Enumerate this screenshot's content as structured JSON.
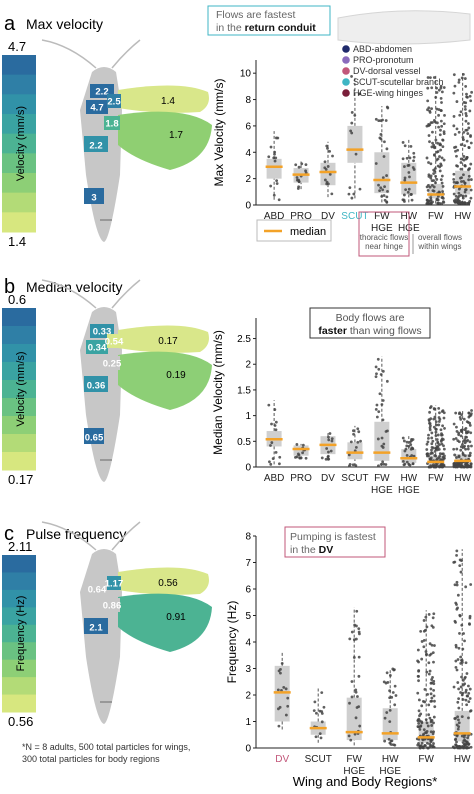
{
  "panels": [
    {
      "letter": "a",
      "title": "Max velocity",
      "scale": {
        "max_label": "4.7",
        "min_label": "1.4",
        "axis_label": "Velocity (mm/s)"
      },
      "insect_labels": {
        "pro": "2.2",
        "abd1": "4.7",
        "hinge": "2.5",
        "scut": "1.8",
        "mid": "2.2",
        "dv": "3",
        "forewing": "1.4",
        "hindwing": "1.7"
      },
      "callout": {
        "line1": "Flows are fastest",
        "line2_plain": "in the ",
        "line2_bold": "return conduit"
      },
      "legend": [
        {
          "label": "ABD-abdomen",
          "color": "#1f2a6b"
        },
        {
          "label": "PRO-pronotum",
          "color": "#8a6bbd"
        },
        {
          "label": "DV-dorsal vessel",
          "color": "#c2577a"
        },
        {
          "label": "SCUT-scutellar branch",
          "color": "#3fb6c4"
        },
        {
          "label": "HGE-wing hinges",
          "color": "#7a1f3a"
        }
      ],
      "median_legend": "median",
      "note_thoracic": [
        "thoracic flows",
        "near hinge"
      ],
      "note_overall": [
        "overall flows",
        "within wings"
      ]
    },
    {
      "letter": "b",
      "title": "Median velocity",
      "scale": {
        "max_label": "0.6",
        "min_label": "0.17",
        "axis_label": "Velocity (mm/s)"
      },
      "insect_labels": {
        "pro": "0.33",
        "abd1": "0.34",
        "hinge": "0.54",
        "scut": "0.25",
        "mid": "0.36",
        "dv": "0.65",
        "forewing": "0.17",
        "hindwing": "0.19"
      },
      "callout": {
        "line1": "Body flows are",
        "line2_plain": " than wing flows",
        "line2_bold": "faster"
      }
    },
    {
      "letter": "c",
      "title": "Pulse frequency",
      "scale": {
        "max_label": "2.11",
        "min_label": "0.56",
        "axis_label": "Frequency (Hz)"
      },
      "insect_labels": {
        "abd1": "0.64",
        "hinge": "1.17",
        "scut": "0.86",
        "mid": "2.1",
        "forewing": "0.56",
        "hindwing": "0.91"
      },
      "callout": {
        "line1": "Pumping is fastest",
        "line2_plain": "in the ",
        "line2_bold": "DV"
      },
      "footnote": [
        "*N = 8 adults, 500 total particles for wings,",
        "300 total particles for body regions"
      ]
    }
  ],
  "x_title": "Wing and Body Regions*",
  "chart_data": [
    {
      "type": "box",
      "ylabel": "Max Velocity (mm/s)",
      "ylim": [
        0,
        11
      ],
      "yticks": [
        0,
        2,
        4,
        6,
        8,
        10
      ],
      "categories": [
        "ABD",
        "PRO",
        "DV",
        "SCUT",
        "FW\nHGE",
        "HW\nHGE",
        "FW",
        "HW"
      ],
      "median": [
        2.9,
        2.3,
        2.5,
        4.2,
        1.9,
        1.7,
        0.8,
        1.4
      ],
      "q1": [
        2.0,
        1.7,
        1.5,
        3.2,
        0.9,
        0.8,
        0.5,
        0.8
      ],
      "q3": [
        3.5,
        2.8,
        3.2,
        6.0,
        4.0,
        3.2,
        1.6,
        2.6
      ],
      "whisker_low": [
        0.4,
        1.2,
        0.6,
        0.5,
        0.2,
        0.2,
        0.1,
        0.1
      ],
      "whisker_high": [
        5.6,
        3.3,
        4.8,
        9.8,
        7.5,
        5.0,
        9.8,
        10.0
      ],
      "highlight_label": "SCUT"
    },
    {
      "type": "box",
      "ylabel": "Median Velocity (mm/s)",
      "ylim": [
        0,
        2.9
      ],
      "yticks": [
        0,
        0.5,
        1,
        1.5,
        2,
        2.5
      ],
      "categories": [
        "ABD",
        "PRO",
        "DV",
        "SCUT",
        "FW\nHGE",
        "HW\nHGE",
        "FW",
        "HW"
      ],
      "median": [
        0.54,
        0.35,
        0.43,
        0.28,
        0.28,
        0.17,
        0.1,
        0.12
      ],
      "q1": [
        0.4,
        0.22,
        0.25,
        0.15,
        0.12,
        0.08,
        0.04,
        0.05
      ],
      "q3": [
        0.7,
        0.42,
        0.6,
        0.48,
        0.88,
        0.35,
        0.22,
        0.25
      ],
      "whisker_low": [
        0.05,
        0.15,
        0.15,
        0.02,
        0.02,
        0.02,
        0.0,
        0.0
      ],
      "whisker_high": [
        1.3,
        0.45,
        0.68,
        0.8,
        2.15,
        0.6,
        1.2,
        1.1
      ]
    },
    {
      "type": "box",
      "ylabel": "Frequency (Hz)",
      "ylim": [
        0,
        8
      ],
      "yticks": [
        0,
        1,
        2,
        3,
        4,
        5,
        6,
        7,
        8
      ],
      "categories": [
        "DV",
        "SCUT",
        "FW\nHGE",
        "HW\nHGE",
        "FW",
        "HW"
      ],
      "median": [
        2.1,
        0.75,
        0.6,
        0.55,
        0.4,
        0.55
      ],
      "q1": [
        1.0,
        0.5,
        0.3,
        0.3,
        0.2,
        0.25
      ],
      "q3": [
        3.1,
        1.0,
        1.9,
        1.5,
        1.0,
        1.4
      ],
      "whisker_low": [
        0.7,
        0.2,
        0.1,
        0.1,
        0.0,
        0.0
      ],
      "whisker_high": [
        3.6,
        2.3,
        5.3,
        3.0,
        5.2,
        7.5
      ],
      "highlight_label": "DV"
    }
  ]
}
